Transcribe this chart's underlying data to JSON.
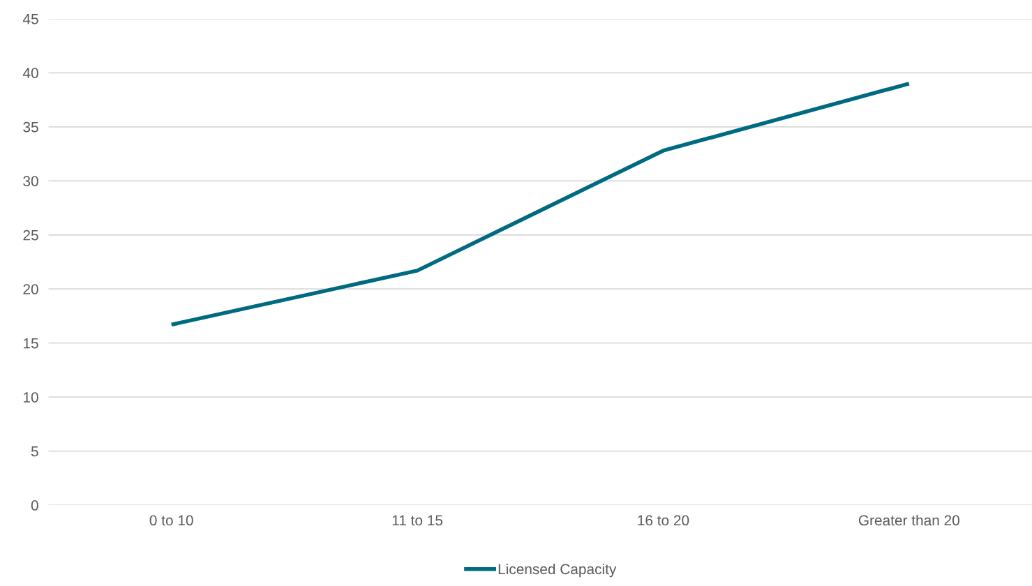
{
  "chart_data": {
    "type": "line",
    "categories": [
      "0 to 10",
      "11 to 15",
      "16 to 20",
      "Greater than 20"
    ],
    "series": [
      {
        "name": "Licensed Capacity",
        "color": "#006a80",
        "values": [
          16.7,
          21.7,
          32.8,
          39.0
        ]
      }
    ],
    "ylim": [
      0,
      45
    ],
    "yticks": [
      0,
      5,
      10,
      15,
      20,
      25,
      30,
      35,
      40,
      45
    ],
    "grid": "y",
    "legend": "bottom",
    "marker": "none",
    "line_style": "solid"
  }
}
